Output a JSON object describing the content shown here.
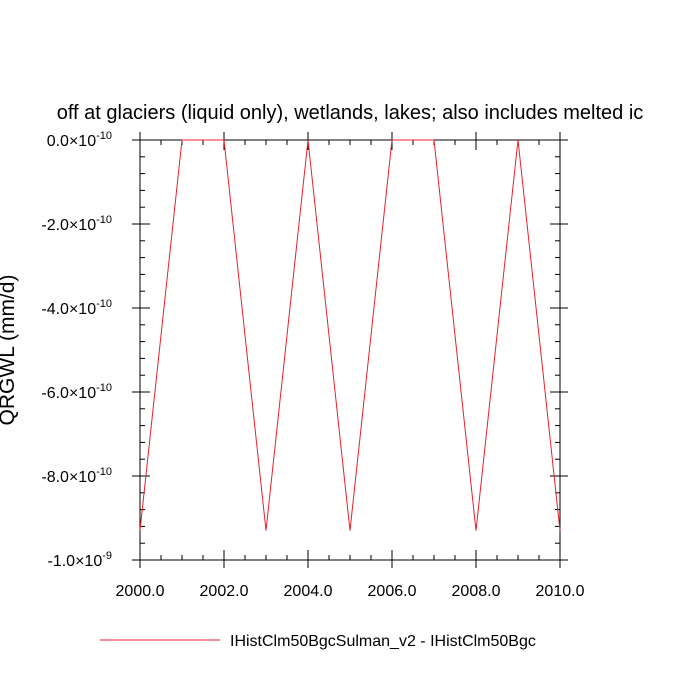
{
  "chart_data": {
    "type": "line",
    "title": "off at glaciers (liquid only), wetlands, lakes; also includes melted ic",
    "ylabel": "QRGWL  (mm/d)",
    "xlabel": "",
    "xlim": [
      2000.0,
      2010.0
    ],
    "ylim": [
      -1e-09,
      0.0
    ],
    "grid": false,
    "legend_position": "bottom",
    "x_ticks": [
      {
        "value": 2000,
        "label": "2000.0"
      },
      {
        "value": 2002,
        "label": "2002.0"
      },
      {
        "value": 2004,
        "label": "2004.0"
      },
      {
        "value": 2006,
        "label": "2006.0"
      },
      {
        "value": 2008,
        "label": "2008.0"
      },
      {
        "value": 2010,
        "label": "2010.0"
      }
    ],
    "y_ticks": [
      {
        "value": 0.0,
        "mantissa": "0.0",
        "exponent": "-10"
      },
      {
        "value": -2e-10,
        "mantissa": "-2.0",
        "exponent": "-10"
      },
      {
        "value": -4e-10,
        "mantissa": "-4.0",
        "exponent": "-10"
      },
      {
        "value": -6e-10,
        "mantissa": "-6.0",
        "exponent": "-10"
      },
      {
        "value": -8e-10,
        "mantissa": "-8.0",
        "exponent": "-10"
      },
      {
        "value": -1e-09,
        "mantissa": "-1.0",
        "exponent": "-9"
      }
    ],
    "series": [
      {
        "name": "IHistClm50BgcSulman_v2 - IHistClm50Bgc",
        "color": "#e8202a",
        "x": [
          2000,
          2001,
          2002,
          2003,
          2004,
          2005,
          2006,
          2007,
          2008,
          2009,
          2010
        ],
        "y": [
          -9.3e-10,
          0.0,
          0.0,
          -9.3e-10,
          0.0,
          -9.3e-10,
          0.0,
          0.0,
          -9.3e-10,
          0.0,
          -9.3e-10
        ]
      }
    ]
  }
}
